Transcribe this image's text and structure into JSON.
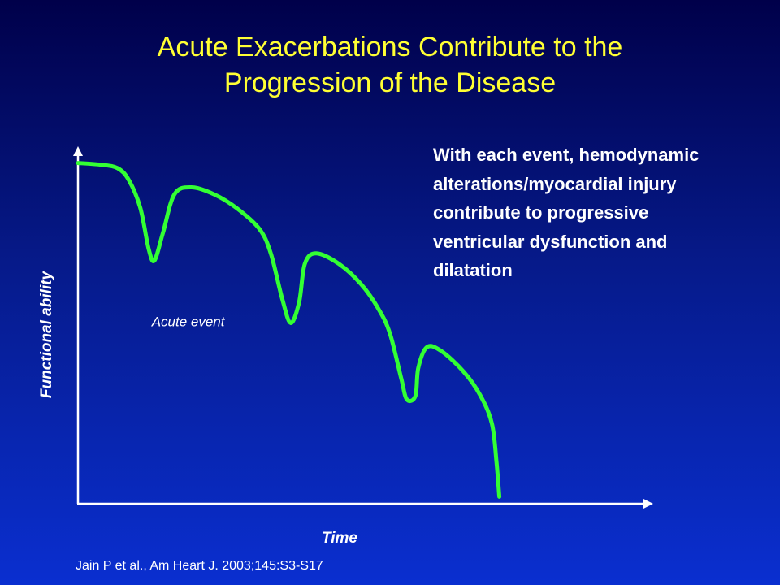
{
  "title": {
    "line1": "Acute Exacerbations Contribute to the",
    "line2": "Progression of the Disease"
  },
  "note": {
    "lines": [
      "With each event, hemodynamic",
      "alterations/myocardial injury",
      "contribute to progressive",
      "ventricular dysfunction and",
      "dilatation"
    ]
  },
  "citation": "Jain P et al., Am Heart J. 2003;145:S3-S17",
  "colors": {
    "title": "#ffff33",
    "curve": "#33ff33",
    "axis": "#ffffff",
    "text": "#ffffff"
  },
  "chart_data": {
    "type": "line",
    "title": "Acute Exacerbations Contribute to the Progression of the Disease",
    "xlabel": "Time",
    "ylabel": "Functional ability",
    "tick_labels": "none",
    "grid": false,
    "xlim": [
      0,
      100
    ],
    "ylim": [
      0,
      100
    ],
    "annotations": [
      {
        "text": "Acute event",
        "x": 13,
        "y": 51
      }
    ],
    "series": [
      {
        "values": [
          [
            0,
            98
          ],
          [
            4,
            97.5
          ],
          [
            7,
            96.5
          ],
          [
            9,
            93
          ],
          [
            11,
            85
          ],
          [
            12.5,
            73
          ],
          [
            13.5,
            70
          ],
          [
            15,
            78
          ],
          [
            17,
            89
          ],
          [
            20,
            91
          ],
          [
            24,
            89
          ],
          [
            28,
            85
          ],
          [
            32,
            79
          ],
          [
            34,
            72
          ],
          [
            36,
            59
          ],
          [
            37.5,
            52
          ],
          [
            39,
            58
          ],
          [
            40,
            69
          ],
          [
            42,
            72
          ],
          [
            46,
            69
          ],
          [
            50,
            63
          ],
          [
            53,
            56
          ],
          [
            55,
            49
          ],
          [
            57,
            36
          ],
          [
            58,
            30
          ],
          [
            59.5,
            31
          ],
          [
            60,
            39
          ],
          [
            61.5,
            45
          ],
          [
            64,
            44
          ],
          [
            68,
            38
          ],
          [
            71,
            31
          ],
          [
            73,
            23
          ],
          [
            73.8,
            12
          ],
          [
            74.3,
            2
          ]
        ]
      }
    ]
  }
}
